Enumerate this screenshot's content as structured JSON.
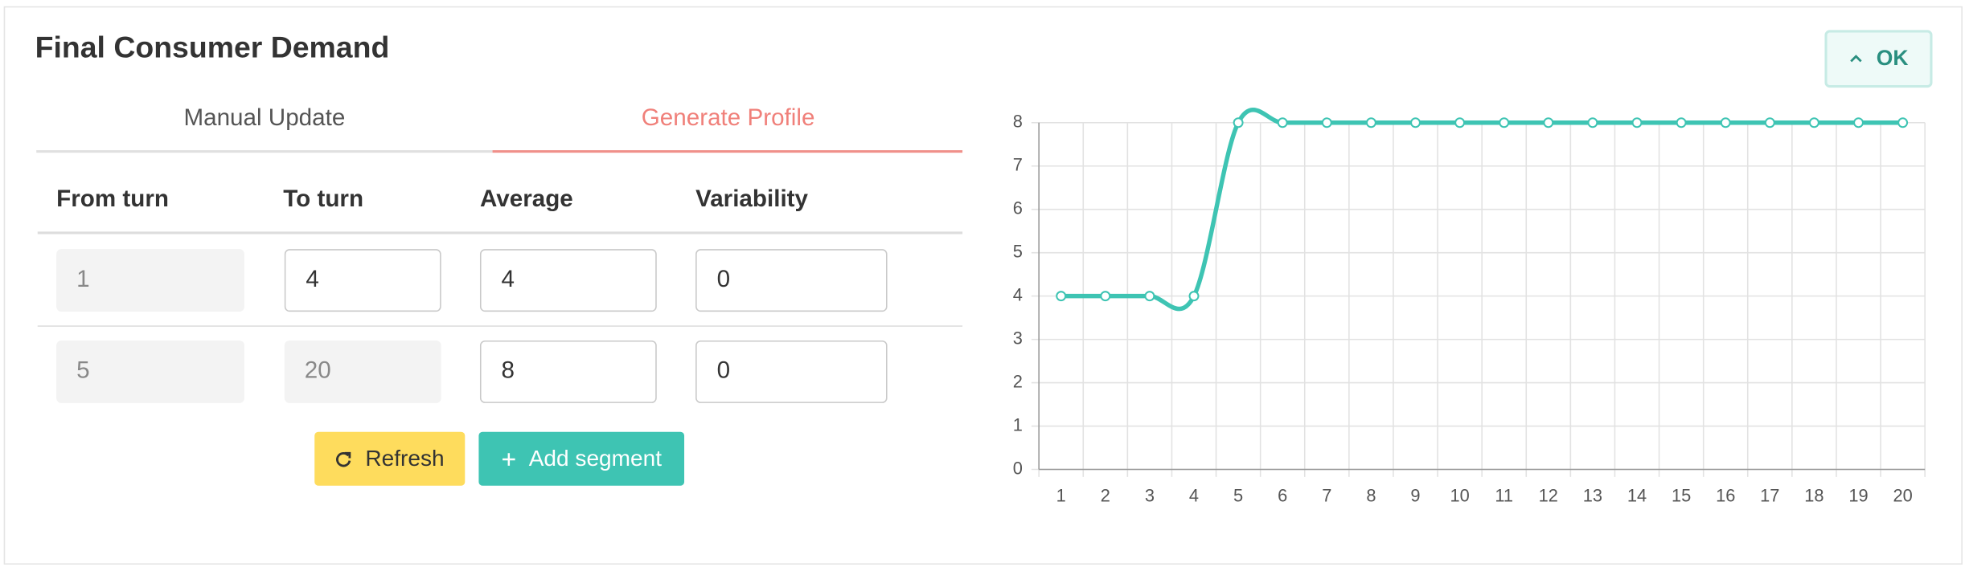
{
  "header": {
    "title": "Final Consumer Demand",
    "button": "OK"
  },
  "tabs": [
    "Manual Update",
    "Generate Profile"
  ],
  "table": {
    "columns": [
      "From turn",
      "To turn",
      "Average",
      "Variability"
    ],
    "rows": [
      [
        1,
        4,
        4,
        0
      ],
      [
        5,
        20,
        8,
        0
      ]
    ]
  },
  "buttons": [
    "Refresh",
    "Add segment"
  ],
  "chart_data": {
    "type": "line",
    "categories": [
      "1",
      "2",
      "3",
      "4",
      "5",
      "6",
      "7",
      "8",
      "9",
      "10",
      "11",
      "12",
      "13",
      "14",
      "15",
      "16",
      "17",
      "18",
      "19",
      "20"
    ],
    "values": [
      4,
      4,
      4,
      4,
      8,
      8,
      8,
      8,
      8,
      8,
      8,
      8,
      8,
      8,
      8,
      8,
      8,
      8,
      8,
      8
    ],
    "color": "#3ec4b3",
    "smooth": true,
    "grid": true,
    "ylim": [
      0,
      8
    ],
    "yticks": [
      0,
      1,
      2,
      3,
      4,
      5,
      6,
      7,
      8
    ]
  }
}
